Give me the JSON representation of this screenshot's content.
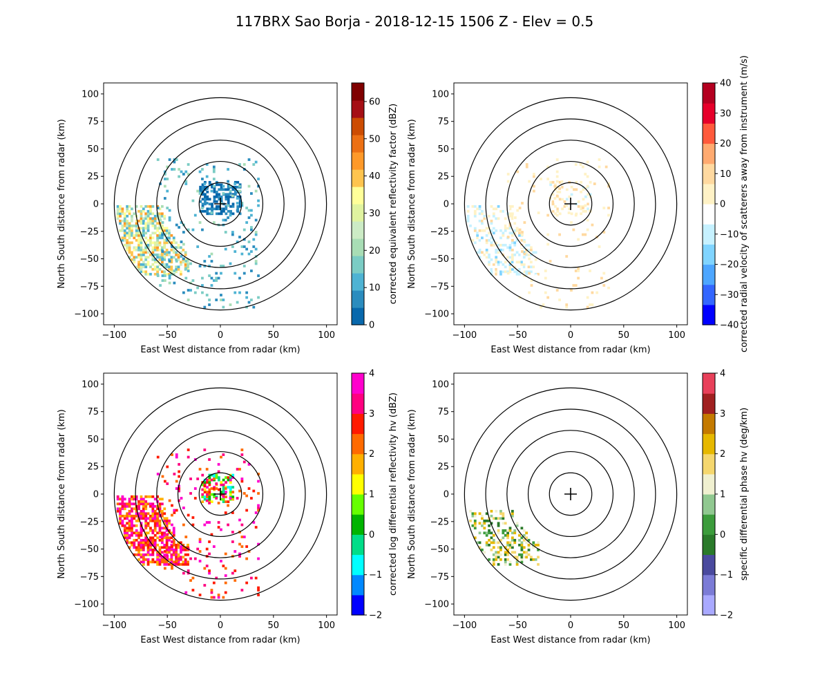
{
  "figure": {
    "title": "117BRX Sao Borja - 2018-12-15 1506 Z -  Elev = 0.5"
  },
  "chart_data": [
    {
      "type": "heatmap",
      "panel": "top-left",
      "xlabel": "East West distance from radar (km)",
      "ylabel": "North South distance from radar (km)",
      "xlim": [
        -110,
        110
      ],
      "ylim": [
        -110,
        110
      ],
      "xticks": [
        -100,
        -50,
        0,
        50,
        100
      ],
      "yticks": [
        -100,
        -75,
        -50,
        -25,
        0,
        25,
        50,
        75,
        100
      ],
      "range_rings_km": [
        20,
        40,
        60,
        80,
        100
      ],
      "colorbar": {
        "label": "corrected equivalent reflectivity factor (dBZ)",
        "min": 0,
        "max": 65,
        "ticks": [
          0,
          10,
          20,
          30,
          40,
          50,
          60
        ],
        "colors": [
          "#0868ac",
          "#2b8cbe",
          "#4eb3d3",
          "#7bccc4",
          "#a8ddb5",
          "#ccebc5",
          "#e0f3a0",
          "#ffff99",
          "#fec44f",
          "#fe9929",
          "#ec7014",
          "#cc4c02",
          "#a50f15",
          "#7f0000"
        ]
      },
      "echoes": [
        {
          "region": "near-radar",
          "dx": [
            -20,
            18
          ],
          "dy": [
            -10,
            20
          ],
          "value_range": [
            0,
            8
          ],
          "density": 0.55
        },
        {
          "region": "southwest-arc",
          "dx": [
            -100,
            -30
          ],
          "dy": [
            -65,
            -2
          ],
          "value_range": [
            10,
            45
          ],
          "density": 0.6
        },
        {
          "region": "scattered",
          "dx": [
            -60,
            35
          ],
          "dy": [
            -95,
            40
          ],
          "value_range": [
            5,
            20
          ],
          "density": 0.08
        }
      ]
    },
    {
      "type": "heatmap",
      "panel": "top-right",
      "xlabel": "East West distance from radar (km)",
      "ylabel": "North South distance from radar (km)",
      "xlim": [
        -110,
        110
      ],
      "ylim": [
        -110,
        110
      ],
      "xticks": [
        -100,
        -50,
        0,
        50,
        100
      ],
      "yticks": [
        -100,
        -75,
        -50,
        -25,
        0,
        25,
        50,
        75,
        100
      ],
      "range_rings_km": [
        20,
        40,
        60,
        80,
        100
      ],
      "colorbar": {
        "label": "corrected radial velocity of scatterers away from instrument (m/s)",
        "min": -40,
        "max": 40,
        "ticks": [
          -40,
          -30,
          -20,
          -10,
          0,
          10,
          20,
          30,
          40
        ],
        "colors": [
          "#0000ff",
          "#3366ff",
          "#4da6ff",
          "#80d4ff",
          "#c6f1ff",
          "#ffffff",
          "#fff2c6",
          "#ffd9a0",
          "#ffaa70",
          "#ff5a3c",
          "#e6002a",
          "#b40020"
        ]
      },
      "echoes": [
        {
          "region": "near-radar",
          "dx": [
            -20,
            18
          ],
          "dy": [
            -10,
            20
          ],
          "value_range": [
            -8,
            10
          ],
          "density": 0.4
        },
        {
          "region": "southwest-arc",
          "dx": [
            -100,
            -30
          ],
          "dy": [
            -65,
            -2
          ],
          "value_range": [
            -15,
            8
          ],
          "density": 0.45
        },
        {
          "region": "scattered",
          "dx": [
            -60,
            35
          ],
          "dy": [
            -95,
            40
          ],
          "value_range": [
            -5,
            10
          ],
          "density": 0.06
        }
      ]
    },
    {
      "type": "heatmap",
      "panel": "bottom-left",
      "xlabel": "East West distance from radar (km)",
      "ylabel": "North South distance from radar (km)",
      "xlim": [
        -110,
        110
      ],
      "ylim": [
        -110,
        110
      ],
      "xticks": [
        -100,
        -50,
        0,
        50,
        100
      ],
      "yticks": [
        -100,
        -75,
        -50,
        -25,
        0,
        25,
        50,
        75,
        100
      ],
      "range_rings_km": [
        20,
        40,
        60,
        80,
        100
      ],
      "colorbar": {
        "label": "corrected log differential reflectivity hv (dBZ)",
        "min": -2,
        "max": 4,
        "ticks": [
          -2,
          -1,
          0,
          1,
          2,
          3,
          4
        ],
        "colors": [
          "#0000ff",
          "#0088ff",
          "#00ffff",
          "#00dd88",
          "#00b400",
          "#66ff00",
          "#ffff00",
          "#ffb000",
          "#ff6a00",
          "#ff1a00",
          "#ff0080",
          "#ff00cc"
        ]
      },
      "echoes": [
        {
          "region": "near-radar",
          "dx": [
            -18,
            12
          ],
          "dy": [
            -8,
            18
          ],
          "value_range": [
            -1,
            4
          ],
          "density": 0.5
        },
        {
          "region": "southwest-arc",
          "dx": [
            -100,
            -30
          ],
          "dy": [
            -65,
            -2
          ],
          "value_range": [
            1.5,
            4
          ],
          "density": 0.65
        },
        {
          "region": "scattered",
          "dx": [
            -60,
            35
          ],
          "dy": [
            -95,
            40
          ],
          "value_range": [
            2,
            4
          ],
          "density": 0.06
        }
      ]
    },
    {
      "type": "heatmap",
      "panel": "bottom-right",
      "xlabel": "East West distance from radar (km)",
      "ylabel": "North South distance from radar (km)",
      "xlim": [
        -110,
        110
      ],
      "ylim": [
        -110,
        110
      ],
      "xticks": [
        -100,
        -50,
        0,
        50,
        100
      ],
      "yticks": [
        -100,
        -75,
        -50,
        -25,
        0,
        25,
        50,
        75,
        100
      ],
      "range_rings_km": [
        20,
        40,
        60,
        80,
        100
      ],
      "colorbar": {
        "label": "specific differential phase hv (deg/km)",
        "min": -2,
        "max": 4,
        "ticks": [
          -2,
          -1,
          0,
          1,
          2,
          3,
          4
        ],
        "colors": [
          "#a9a9ff",
          "#7b7bd6",
          "#4a4a9e",
          "#2a7a2a",
          "#3c9c3c",
          "#90c890",
          "#f0f0d0",
          "#f5d76e",
          "#e6b800",
          "#c47a00",
          "#a02020",
          "#e8405a"
        ]
      },
      "echoes": [
        {
          "region": "southwest-arc",
          "dx": [
            -100,
            -30
          ],
          "dy": [
            -65,
            -15
          ],
          "value_range": [
            -0.5,
            2.5
          ],
          "density": 0.35
        }
      ]
    }
  ]
}
